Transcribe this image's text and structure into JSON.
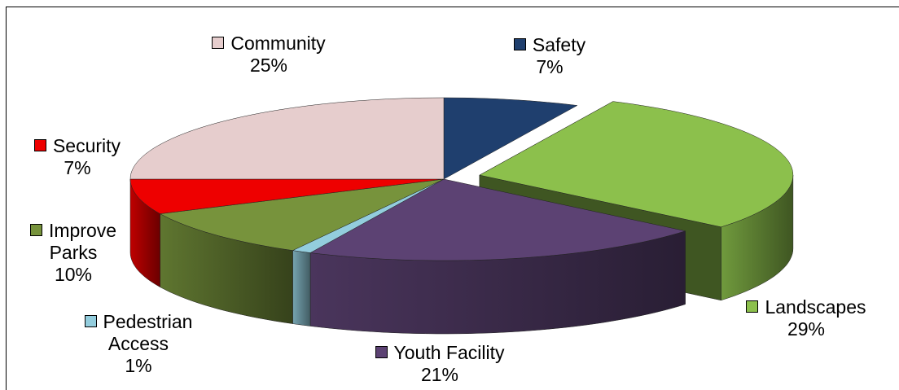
{
  "chart_data": {
    "type": "pie3d",
    "categories": [
      "Safety",
      "Landscapes",
      "Youth Facility",
      "Pedestrian Access",
      "Improve Parks",
      "Security",
      "Community"
    ],
    "values": [
      7,
      29,
      21,
      1,
      10,
      7,
      25
    ],
    "value_labels": [
      "7%",
      "29%",
      "21%",
      "1%",
      "10%",
      "7%",
      "25%"
    ],
    "colors": [
      "#1f3f6e",
      "#8cc04c",
      "#5c4273",
      "#93cddd",
      "#77933c",
      "#ee0000",
      "#e6cdcd"
    ]
  }
}
